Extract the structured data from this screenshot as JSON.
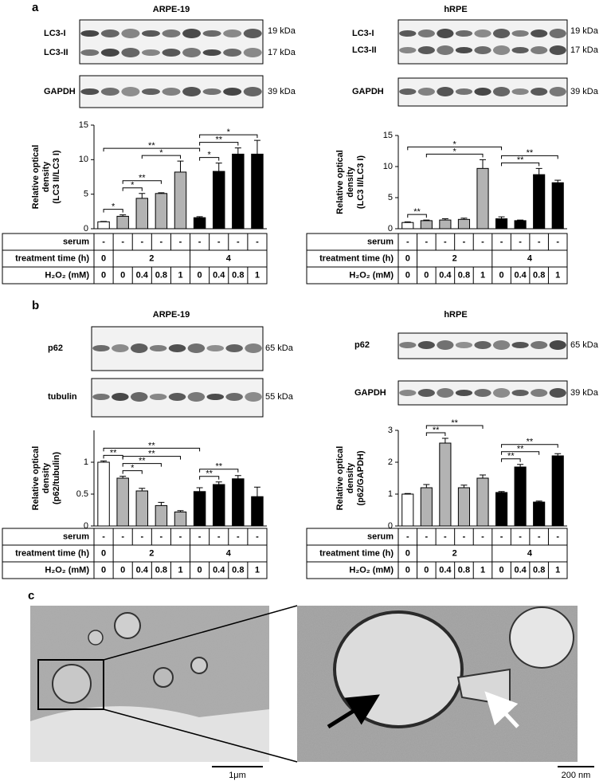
{
  "panel_labels": [
    "a",
    "b",
    "c"
  ],
  "chart_data": [
    {
      "type": "bar",
      "title": "ARPE-19",
      "ylabel": [
        "Relative optical",
        "density",
        "(LC3 II/LC3 I)"
      ],
      "values": [
        1.0,
        1.8,
        4.4,
        5.1,
        8.2,
        1.6,
        8.3,
        10.8,
        10.8
      ],
      "errors": [
        0.05,
        0.2,
        0.7,
        0.1,
        1.6,
        0.15,
        1.2,
        0.9,
        2.0
      ],
      "colors": [
        "#ffffff",
        "#b3b3b3",
        "#b3b3b3",
        "#b3b3b3",
        "#b3b3b3",
        "#000000",
        "#000000",
        "#000000",
        "#000000"
      ],
      "ylim": [
        0,
        15
      ],
      "yticks": [
        0,
        5,
        10,
        15
      ],
      "brackets": [
        {
          "label": "*",
          "from": 0,
          "to": 1
        },
        {
          "label": "*",
          "from": 1,
          "to": 2
        },
        {
          "label": "**",
          "from": 1,
          "to": 3
        },
        {
          "label": "*",
          "from": 2,
          "to": 4
        },
        {
          "label": "**",
          "from": 0,
          "to": 5
        },
        {
          "label": "*",
          "from": 5,
          "to": 6
        },
        {
          "label": "**",
          "from": 5,
          "to": 7
        },
        {
          "label": "*",
          "from": 5,
          "to": 8
        }
      ],
      "table": [
        {
          "label": "serum",
          "cells": [
            "-",
            "-",
            "-",
            "-",
            "-",
            "-",
            "-",
            "-",
            "-"
          ]
        },
        {
          "label": "treatment time (h)",
          "cells": [
            0,
            2,
            4
          ],
          "spans": [
            1,
            4,
            4
          ]
        },
        {
          "label": "H₂O₂ (mM)",
          "cells": [
            0,
            0,
            0.4,
            0.8,
            1,
            0,
            0.4,
            0.8,
            1
          ]
        }
      ]
    },
    {
      "type": "bar",
      "title": "hRPE",
      "ylabel": [
        "Relative optical",
        "density",
        "(LC3 II/LC3 I)"
      ],
      "values": [
        1.0,
        1.3,
        1.4,
        1.5,
        9.7,
        1.6,
        1.3,
        8.7,
        7.4
      ],
      "errors": [
        0.1,
        0.1,
        0.2,
        0.2,
        1.4,
        0.3,
        0.1,
        1.0,
        0.4
      ],
      "colors": [
        "#ffffff",
        "#b3b3b3",
        "#b3b3b3",
        "#b3b3b3",
        "#b3b3b3",
        "#000000",
        "#000000",
        "#000000",
        "#000000"
      ],
      "ylim": [
        0,
        15
      ],
      "yticks": [
        0,
        5,
        10,
        15
      ],
      "brackets": [
        {
          "label": "**",
          "from": 0,
          "to": 1
        },
        {
          "label": "*",
          "from": 1,
          "to": 4
        },
        {
          "label": "*",
          "from": 0,
          "to": 5
        },
        {
          "label": "**",
          "from": 5,
          "to": 7
        },
        {
          "label": "**",
          "from": 5,
          "to": 8
        }
      ],
      "table": [
        {
          "label": "serum",
          "cells": [
            "-",
            "-",
            "-",
            "-",
            "-",
            "-",
            "-",
            "-",
            "-"
          ]
        },
        {
          "label": "treatment time (h)",
          "cells": [
            0,
            2,
            4
          ],
          "spans": [
            1,
            4,
            4
          ]
        },
        {
          "label": "H₂O₂ (mM)",
          "cells": [
            0,
            0,
            0.4,
            0.8,
            1,
            0,
            0.4,
            0.8,
            1
          ]
        }
      ]
    },
    {
      "type": "bar",
      "title": "ARPE-19",
      "ylabel": [
        "Relative optical",
        "density",
        "(p62/tubulin)"
      ],
      "values": [
        1.0,
        0.75,
        0.55,
        0.32,
        0.22,
        0.54,
        0.65,
        0.74,
        0.46
      ],
      "errors": [
        0.02,
        0.03,
        0.04,
        0.05,
        0.02,
        0.06,
        0.04,
        0.05,
        0.15
      ],
      "colors": [
        "#ffffff",
        "#b3b3b3",
        "#b3b3b3",
        "#b3b3b3",
        "#b3b3b3",
        "#000000",
        "#000000",
        "#000000",
        "#000000"
      ],
      "ylim": [
        0,
        1.5
      ],
      "yticks": [
        0,
        0.5,
        1
      ],
      "brackets": [
        {
          "label": "**",
          "from": 0,
          "to": 1
        },
        {
          "label": "*",
          "from": 1,
          "to": 2
        },
        {
          "label": "**",
          "from": 1,
          "to": 3
        },
        {
          "label": "**",
          "from": 1,
          "to": 4
        },
        {
          "label": "**",
          "from": 0,
          "to": 5
        },
        {
          "label": "**",
          "from": 5,
          "to": 6
        },
        {
          "label": "**",
          "from": 5,
          "to": 7
        }
      ],
      "table": [
        {
          "label": "serum",
          "cells": [
            "-",
            "-",
            "-",
            "-",
            "-",
            "-",
            "-",
            "-",
            "-"
          ]
        },
        {
          "label": "treatment time (h)",
          "cells": [
            0,
            2,
            4
          ],
          "spans": [
            1,
            4,
            4
          ]
        },
        {
          "label": "H₂O₂ (mM)",
          "cells": [
            0,
            0,
            0.4,
            0.8,
            1,
            0,
            0.4,
            0.8,
            1
          ]
        }
      ]
    },
    {
      "type": "bar",
      "title": "hRPE",
      "ylabel": [
        "Relative optical",
        "density",
        "(p62/GAPDH)"
      ],
      "values": [
        1.0,
        1.2,
        2.6,
        1.2,
        1.5,
        1.05,
        1.85,
        0.75,
        2.2
      ],
      "errors": [
        0.02,
        0.1,
        0.15,
        0.08,
        0.1,
        0.03,
        0.08,
        0.03,
        0.07
      ],
      "colors": [
        "#ffffff",
        "#b3b3b3",
        "#b3b3b3",
        "#b3b3b3",
        "#b3b3b3",
        "#000000",
        "#000000",
        "#000000",
        "#000000"
      ],
      "ylim": [
        0,
        3
      ],
      "yticks": [
        0,
        1,
        2,
        3
      ],
      "brackets": [
        {
          "label": "**",
          "from": 1,
          "to": 2
        },
        {
          "label": "**",
          "from": 1,
          "to": 4
        },
        {
          "label": "**",
          "from": 5,
          "to": 6
        },
        {
          "label": "**",
          "from": 5,
          "to": 7
        },
        {
          "label": "**",
          "from": 5,
          "to": 8
        }
      ],
      "table": [
        {
          "label": "serum",
          "cells": [
            "-",
            "-",
            "-",
            "-",
            "-",
            "-",
            "-",
            "-",
            "-"
          ]
        },
        {
          "label": "treatment time (h)",
          "cells": [
            0,
            2,
            4
          ],
          "spans": [
            1,
            4,
            4
          ]
        },
        {
          "label": "H₂O₂ (mM)",
          "cells": [
            0,
            0,
            0.4,
            0.8,
            1,
            0,
            0.4,
            0.8,
            1
          ]
        }
      ]
    }
  ],
  "blots": [
    {
      "labels": [
        "LC3-I",
        "LC3-II"
      ],
      "sizes": [
        "19 kDa",
        "17 kDa"
      ]
    },
    {
      "labels": [
        "GAPDH"
      ],
      "sizes": [
        "39 kDa"
      ]
    },
    {
      "labels": [
        "LC3-I",
        "LC3-II"
      ],
      "sizes": [
        "19 kDa",
        "17 kDa"
      ]
    },
    {
      "labels": [
        "GAPDH"
      ],
      "sizes": [
        "39 kDa"
      ]
    },
    {
      "labels": [
        "p62"
      ],
      "sizes": [
        "65 kDa"
      ]
    },
    {
      "labels": [
        "tubulin"
      ],
      "sizes": [
        "55 kDa"
      ]
    },
    {
      "labels": [
        "p62"
      ],
      "sizes": [
        "65 kDa"
      ]
    },
    {
      "labels": [
        "GAPDH"
      ],
      "sizes": [
        "39 kDa"
      ]
    }
  ],
  "micrographs": {
    "scale_bars": [
      "1μm",
      "200 nm"
    ]
  }
}
